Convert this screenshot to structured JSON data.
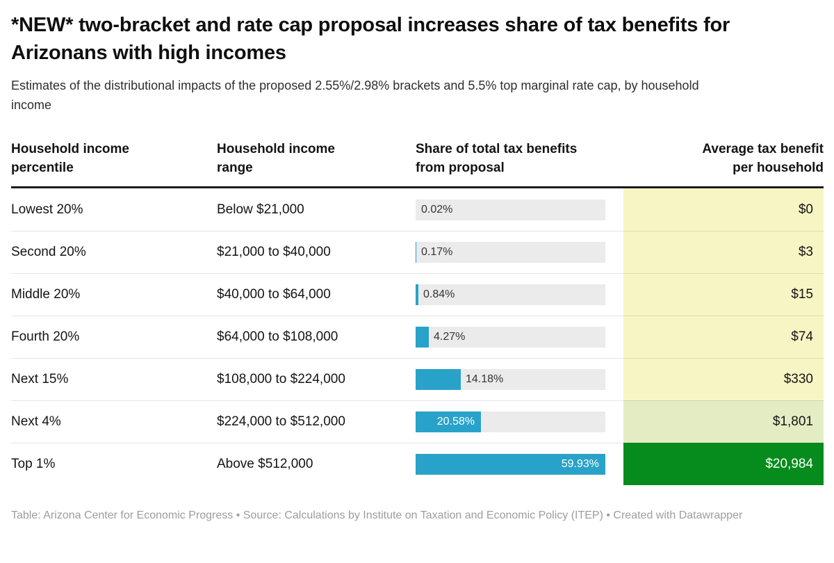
{
  "header": {
    "title": "*NEW* two-bracket and rate cap proposal increases share of tax benefits for Arizonans with high incomes",
    "subtitle": "Estimates of the distributional impacts of the proposed 2.55%/2.98% brackets and 5.5% top marginal rate cap, by household income"
  },
  "table": {
    "columns": {
      "c1": "Household income percentile",
      "c2": "Household income range",
      "c3": "Share of total tax benefits from proposal",
      "c4": "Average tax benefit per household"
    },
    "rows": [
      {
        "percentile": "Lowest 20%",
        "range": "Below $21,000",
        "share_label": "0.02%",
        "share_pct": 0.02,
        "benefit": "$0",
        "heat": "yellow"
      },
      {
        "percentile": "Second 20%",
        "range": "$21,000 to $40,000",
        "share_label": "0.17%",
        "share_pct": 0.17,
        "benefit": "$3",
        "heat": "yellow"
      },
      {
        "percentile": "Middle 20%",
        "range": "$40,000 to $64,000",
        "share_label": "0.84%",
        "share_pct": 0.84,
        "benefit": "$15",
        "heat": "yellow"
      },
      {
        "percentile": "Fourth 20%",
        "range": "$64,000 to $108,000",
        "share_label": "4.27%",
        "share_pct": 4.27,
        "benefit": "$74",
        "heat": "yellow"
      },
      {
        "percentile": "Next 15%",
        "range": "$108,000 to $224,000",
        "share_label": "14.18%",
        "share_pct": 14.18,
        "benefit": "$330",
        "heat": "yellow"
      },
      {
        "percentile": "Next 4%",
        "range": "$224,000 to $512,000",
        "share_label": "20.58%",
        "share_pct": 20.58,
        "benefit": "$1,801",
        "heat": "yellow-green"
      },
      {
        "percentile": "Top 1%",
        "range": "Above $512,000",
        "share_label": "59.93%",
        "share_pct": 59.93,
        "benefit": "$20,984",
        "heat": "green"
      }
    ]
  },
  "chart_data": {
    "type": "table",
    "title": "*NEW* two-bracket and rate cap proposal increases share of tax benefits for Arizonans with high incomes",
    "subtitle": "Estimates of the distributional impacts of the proposed 2.55%/2.98% brackets and 5.5% top marginal rate cap, by household income",
    "columns": [
      "Household income percentile",
      "Household income range",
      "Share of total tax benefits from proposal",
      "Average tax benefit per household"
    ],
    "categories": [
      "Lowest 20%",
      "Second 20%",
      "Middle 20%",
      "Fourth 20%",
      "Next 15%",
      "Next 4%",
      "Top 1%"
    ],
    "income_ranges": [
      "Below $21,000",
      "$21,000 to $40,000",
      "$40,000 to $64,000",
      "$64,000 to $108,000",
      "$108,000 to $224,000",
      "$224,000 to $512,000",
      "Above $512,000"
    ],
    "series": [
      {
        "name": "Share of total tax benefits from proposal (%)",
        "values": [
          0.02,
          0.17,
          0.84,
          4.27,
          14.18,
          20.58,
          59.93
        ]
      },
      {
        "name": "Average tax benefit per household ($)",
        "values": [
          0,
          3,
          15,
          74,
          330,
          1801,
          20984
        ]
      }
    ],
    "bar_axis_max": 59.93,
    "legend_position": "none",
    "grid": false
  },
  "colors": {
    "bar_blue": "#29a2c9",
    "bar_track": "#ebebeb",
    "heat_yellow": "#f8f5c5",
    "heat_yellow_green": "#e4ecc3",
    "heat_green": "#068c1c",
    "heat_green_text": "#ffffff",
    "header_rule": "#1a1a1a"
  },
  "footer": {
    "text": "Table: Arizona Center for Economic Progress • Source: Calculations by Institute on Taxation and Economic Policy (ITEP) • Created with Datawrapper"
  }
}
